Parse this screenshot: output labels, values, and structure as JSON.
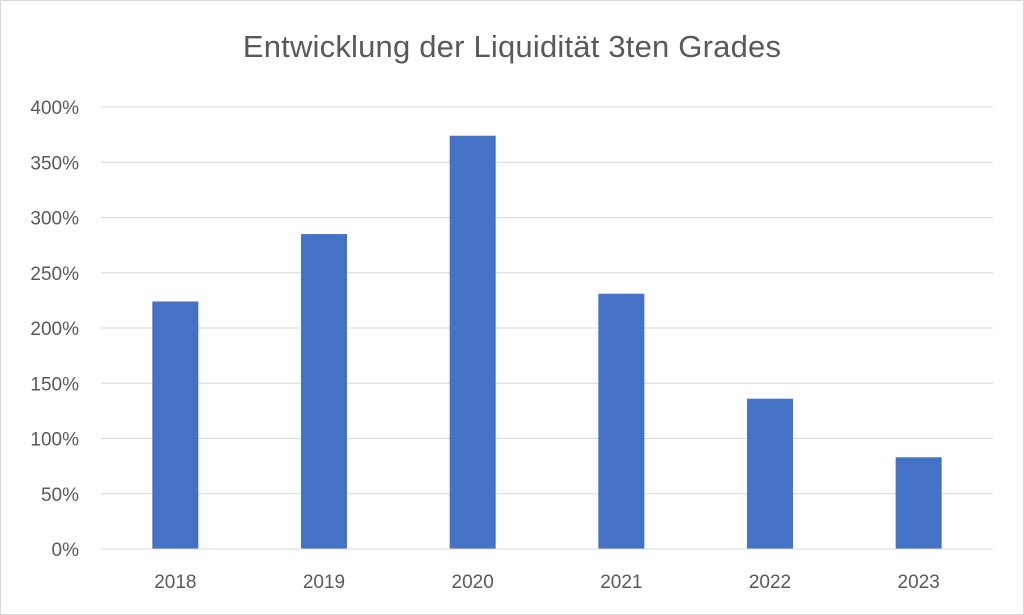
{
  "chart_data": {
    "type": "bar",
    "title": "Entwicklung der Liquidität 3ten Grades",
    "xlabel": "",
    "ylabel": "",
    "categories": [
      "2018",
      "2019",
      "2020",
      "2021",
      "2022",
      "2023"
    ],
    "values": [
      224,
      285,
      374,
      231,
      136,
      83
    ],
    "unit": "%",
    "ylim": [
      0,
      400
    ],
    "y_ticks": [
      0,
      50,
      100,
      150,
      200,
      250,
      300,
      350,
      400
    ],
    "y_tick_labels": [
      "0%",
      "50%",
      "100%",
      "150%",
      "200%",
      "250%",
      "300%",
      "350%",
      "400%"
    ],
    "grid": true,
    "legend": "none",
    "colors": {
      "bar": "#4472c4",
      "grid": "#d9d9d9",
      "text": "#595959"
    }
  }
}
